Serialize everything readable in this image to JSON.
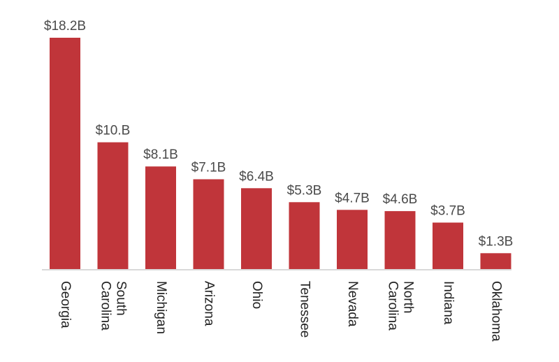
{
  "chart_data": {
    "type": "bar",
    "title": "",
    "xlabel": "",
    "ylabel": "",
    "categories": [
      [
        "Georgia"
      ],
      [
        "South",
        "Carolina"
      ],
      [
        "Michigan"
      ],
      [
        "Arizona"
      ],
      [
        "Ohio"
      ],
      [
        "Tenessee"
      ],
      [
        "Nevada"
      ],
      [
        "North",
        "Carolina"
      ],
      [
        "Indiana"
      ],
      [
        "Oklahoma"
      ]
    ],
    "values": [
      18.2,
      10.0,
      8.1,
      7.1,
      6.4,
      5.3,
      4.7,
      4.6,
      3.7,
      1.3
    ],
    "value_labels": [
      "$18.2B",
      "$10.B",
      "$8.1B",
      "$7.1B",
      "$6.4B",
      "$5.3B",
      "$4.7B",
      "$4.6B",
      "$3.7B",
      "$1.3B"
    ],
    "ylim": [
      0,
      18.2
    ],
    "grid": false,
    "legend": "none",
    "colors": {
      "bar": "#c0353a",
      "value_text": "#4a4a4a",
      "category_text": "#222222",
      "baseline": "#d9d9d9"
    }
  }
}
